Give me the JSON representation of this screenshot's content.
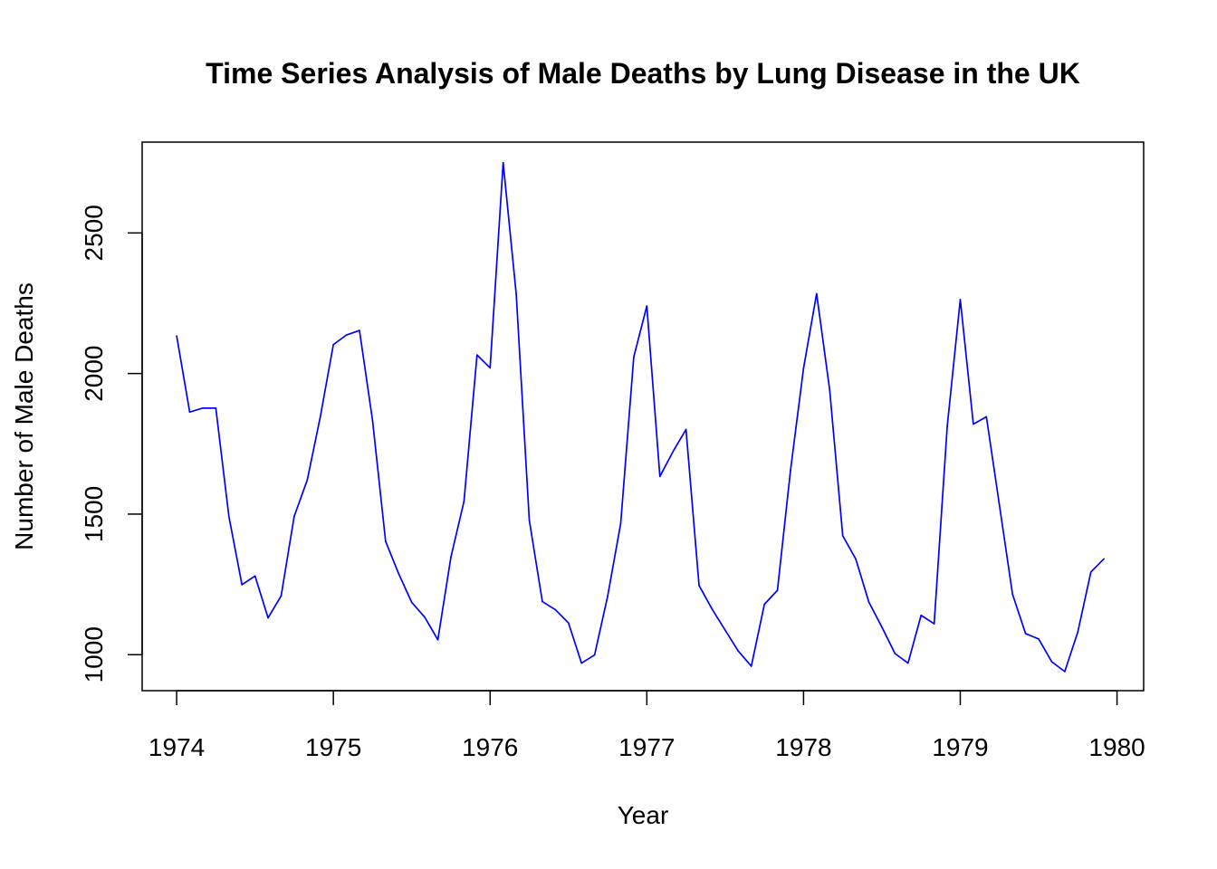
{
  "chart_data": {
    "type": "line",
    "title": "Time Series Analysis of Male Deaths by Lung Disease in the UK",
    "xlabel": "Year",
    "ylabel": "Number of Male Deaths",
    "xlim": [
      1973.78,
      1980.17
    ],
    "ylim": [
      872,
      2823
    ],
    "x_ticks": [
      "1974",
      "1975",
      "1976",
      "1977",
      "1978",
      "1979",
      "1980"
    ],
    "y_ticks": [
      "1000",
      "1500",
      "2000",
      "2500"
    ],
    "grid": false,
    "series": [
      {
        "name": "Male Deaths",
        "color": "#0000ff",
        "start": 1974,
        "frequency": 12,
        "values": [
          2134,
          1863,
          1877,
          1877,
          1492,
          1249,
          1280,
          1131,
          1209,
          1492,
          1621,
          1846,
          2103,
          2137,
          2153,
          1833,
          1403,
          1288,
          1186,
          1133,
          1053,
          1347,
          1545,
          2066,
          2020,
          2750,
          2283,
          1479,
          1189,
          1160,
          1113,
          970,
          999,
          1208,
          1467,
          2059,
          2240,
          1634,
          1722,
          1801,
          1246,
          1162,
          1087,
          1013,
          959,
          1179,
          1229,
          1655,
          2019,
          2284,
          1942,
          1423,
          1340,
          1187,
          1098,
          1004,
          970,
          1140,
          1110,
          1812,
          2263,
          1820,
          1846,
          1531,
          1215,
          1075,
          1056,
          975,
          940,
          1081,
          1294,
          1341
        ]
      }
    ]
  }
}
